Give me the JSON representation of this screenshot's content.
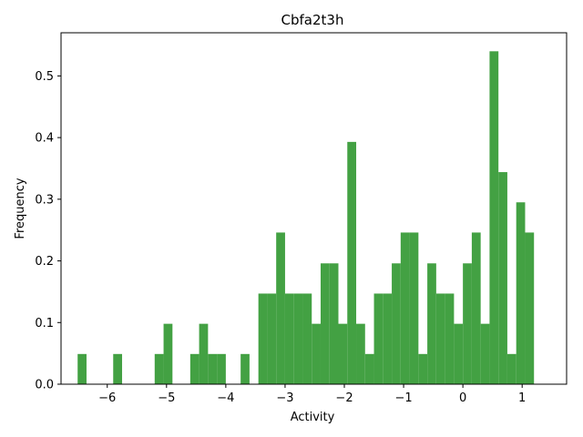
{
  "chart_data": {
    "type": "bar",
    "title": "Cbfa2t3h",
    "xlabel": "Activity",
    "ylabel": "Frequency",
    "xlim": [
      -6.78,
      1.75
    ],
    "ylim": [
      0,
      0.57
    ],
    "bar_color": "#43a143",
    "bin_width": 0.15,
    "grid": false,
    "xticks": [
      {
        "value": -6,
        "label": "−6"
      },
      {
        "value": -5,
        "label": "−5"
      },
      {
        "value": -4,
        "label": "−4"
      },
      {
        "value": -3,
        "label": "−3"
      },
      {
        "value": -2,
        "label": "−2"
      },
      {
        "value": -1,
        "label": "−1"
      },
      {
        "value": 0,
        "label": "0"
      },
      {
        "value": 1,
        "label": "1"
      }
    ],
    "yticks": [
      {
        "value": 0.0,
        "label": "0.0"
      },
      {
        "value": 0.1,
        "label": "0.1"
      },
      {
        "value": 0.2,
        "label": "0.2"
      },
      {
        "value": 0.3,
        "label": "0.3"
      },
      {
        "value": 0.4,
        "label": "0.4"
      },
      {
        "value": 0.5,
        "label": "0.5"
      }
    ],
    "bins": [
      {
        "x": -6.5,
        "value": 0.049
      },
      {
        "x": -5.9,
        "value": 0.049
      },
      {
        "x": -5.2,
        "value": 0.049
      },
      {
        "x": -5.05,
        "value": 0.098
      },
      {
        "x": -4.6,
        "value": 0.049
      },
      {
        "x": -4.45,
        "value": 0.098
      },
      {
        "x": -4.3,
        "value": 0.049
      },
      {
        "x": -4.15,
        "value": 0.049
      },
      {
        "x": -3.75,
        "value": 0.049
      },
      {
        "x": -3.45,
        "value": 0.147
      },
      {
        "x": -3.3,
        "value": 0.147
      },
      {
        "x": -3.15,
        "value": 0.246
      },
      {
        "x": -3.0,
        "value": 0.147
      },
      {
        "x": -2.85,
        "value": 0.147
      },
      {
        "x": -2.7,
        "value": 0.147
      },
      {
        "x": -2.55,
        "value": 0.098
      },
      {
        "x": -2.4,
        "value": 0.196
      },
      {
        "x": -2.25,
        "value": 0.196
      },
      {
        "x": -2.1,
        "value": 0.098
      },
      {
        "x": -1.95,
        "value": 0.393
      },
      {
        "x": -1.8,
        "value": 0.098
      },
      {
        "x": -1.65,
        "value": 0.049
      },
      {
        "x": -1.5,
        "value": 0.147
      },
      {
        "x": -1.35,
        "value": 0.147
      },
      {
        "x": -1.2,
        "value": 0.196
      },
      {
        "x": -1.05,
        "value": 0.246
      },
      {
        "x": -0.9,
        "value": 0.246
      },
      {
        "x": -0.75,
        "value": 0.049
      },
      {
        "x": -0.6,
        "value": 0.196
      },
      {
        "x": -0.45,
        "value": 0.147
      },
      {
        "x": -0.3,
        "value": 0.147
      },
      {
        "x": -0.15,
        "value": 0.098
      },
      {
        "x": 0.0,
        "value": 0.196
      },
      {
        "x": 0.15,
        "value": 0.246
      },
      {
        "x": 0.3,
        "value": 0.098
      },
      {
        "x": 0.45,
        "value": 0.54
      },
      {
        "x": 0.6,
        "value": 0.344
      },
      {
        "x": 0.75,
        "value": 0.049
      },
      {
        "x": 0.9,
        "value": 0.295
      },
      {
        "x": 1.05,
        "value": 0.246
      }
    ]
  }
}
